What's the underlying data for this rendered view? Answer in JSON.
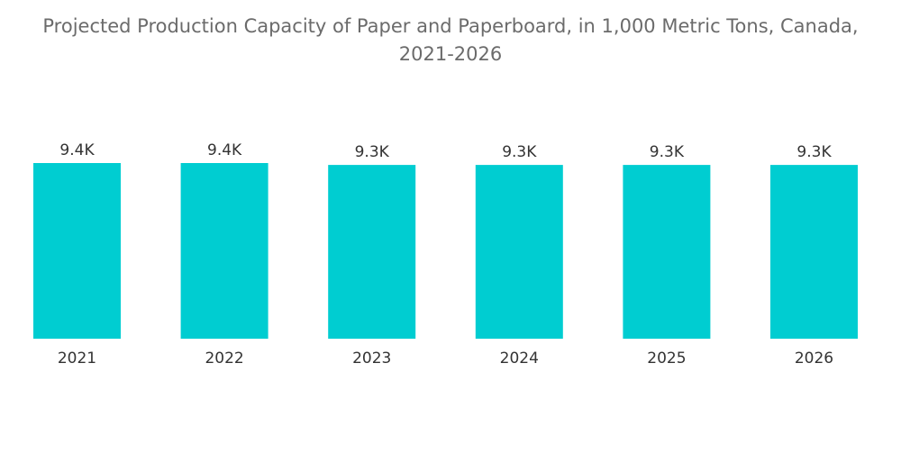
{
  "chart_data": {
    "type": "bar",
    "title_lines": [
      "Projected Production Capacity of Paper and Paperboard, in 1,000 Metric Tons, Canada,",
      "2021-2026"
    ],
    "categories": [
      "2021",
      "2022",
      "2023",
      "2024",
      "2025",
      "2026"
    ],
    "values": [
      9400,
      9400,
      9300,
      9300,
      9300,
      9300
    ],
    "data_labels": [
      "9.4K",
      "9.4K",
      "9.3K",
      "9.3K",
      "9.3K",
      "9.3K"
    ],
    "xlabel": "",
    "ylabel": "",
    "ylim": [
      0,
      9400
    ],
    "grid": false,
    "legend": "none",
    "bar_color": "#00cdd1"
  }
}
